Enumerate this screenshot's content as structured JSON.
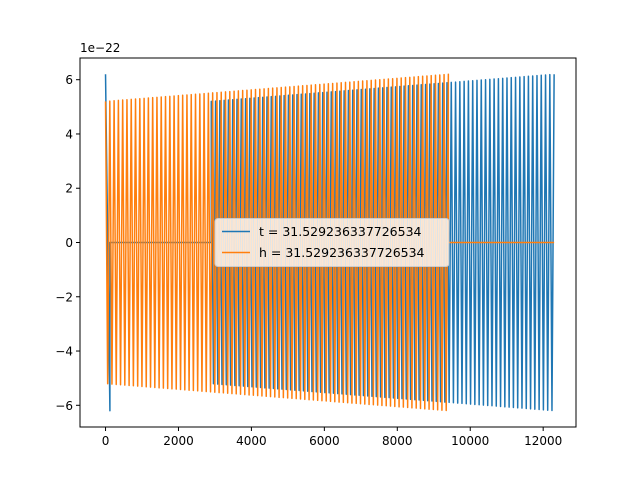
{
  "chart_data": {
    "type": "line",
    "title": "",
    "xlabel": "",
    "ylabel": "",
    "y_offset_label": "1e−22",
    "xlim": [
      -700,
      12900
    ],
    "ylim": [
      -6.8,
      6.8
    ],
    "x_ticks": [
      0,
      2000,
      4000,
      6000,
      8000,
      10000,
      12000
    ],
    "y_ticks": [
      -6,
      -4,
      -2,
      0,
      2,
      4,
      6
    ],
    "x_tick_labels": [
      "0",
      "2000",
      "4000",
      "6000",
      "8000",
      "10000",
      "12000"
    ],
    "y_tick_labels": [
      "−6",
      "−4",
      "−2",
      "0",
      "2",
      "4",
      "6"
    ],
    "grid": false,
    "legend_position": "center",
    "series": [
      {
        "name": "t = 31.529236337726534",
        "color": "#1f77b4",
        "segments": [
          {
            "x_start": 0,
            "x_end": 120,
            "amplitude_start": 6.2,
            "amplitude_end": 6.2,
            "cycles": 0.5
          },
          {
            "x_start": 120,
            "x_end": 2900,
            "amplitude_start": 0.0,
            "amplitude_end": 0.0,
            "cycles": 0
          },
          {
            "x_start": 2900,
            "x_end": 12300,
            "amplitude_start": 5.2,
            "amplitude_end": 6.2,
            "cycles": 80
          }
        ]
      },
      {
        "name": "h = 31.529236337726534",
        "color": "#ff7f0e",
        "segments": [
          {
            "x_start": 0,
            "x_end": 9400,
            "amplitude_start": 5.2,
            "amplitude_end": 6.2,
            "cycles": 80
          },
          {
            "x_start": 9400,
            "x_end": 12300,
            "amplitude_start": 0.0,
            "amplitude_end": 0.0,
            "cycles": 0
          }
        ]
      }
    ]
  }
}
